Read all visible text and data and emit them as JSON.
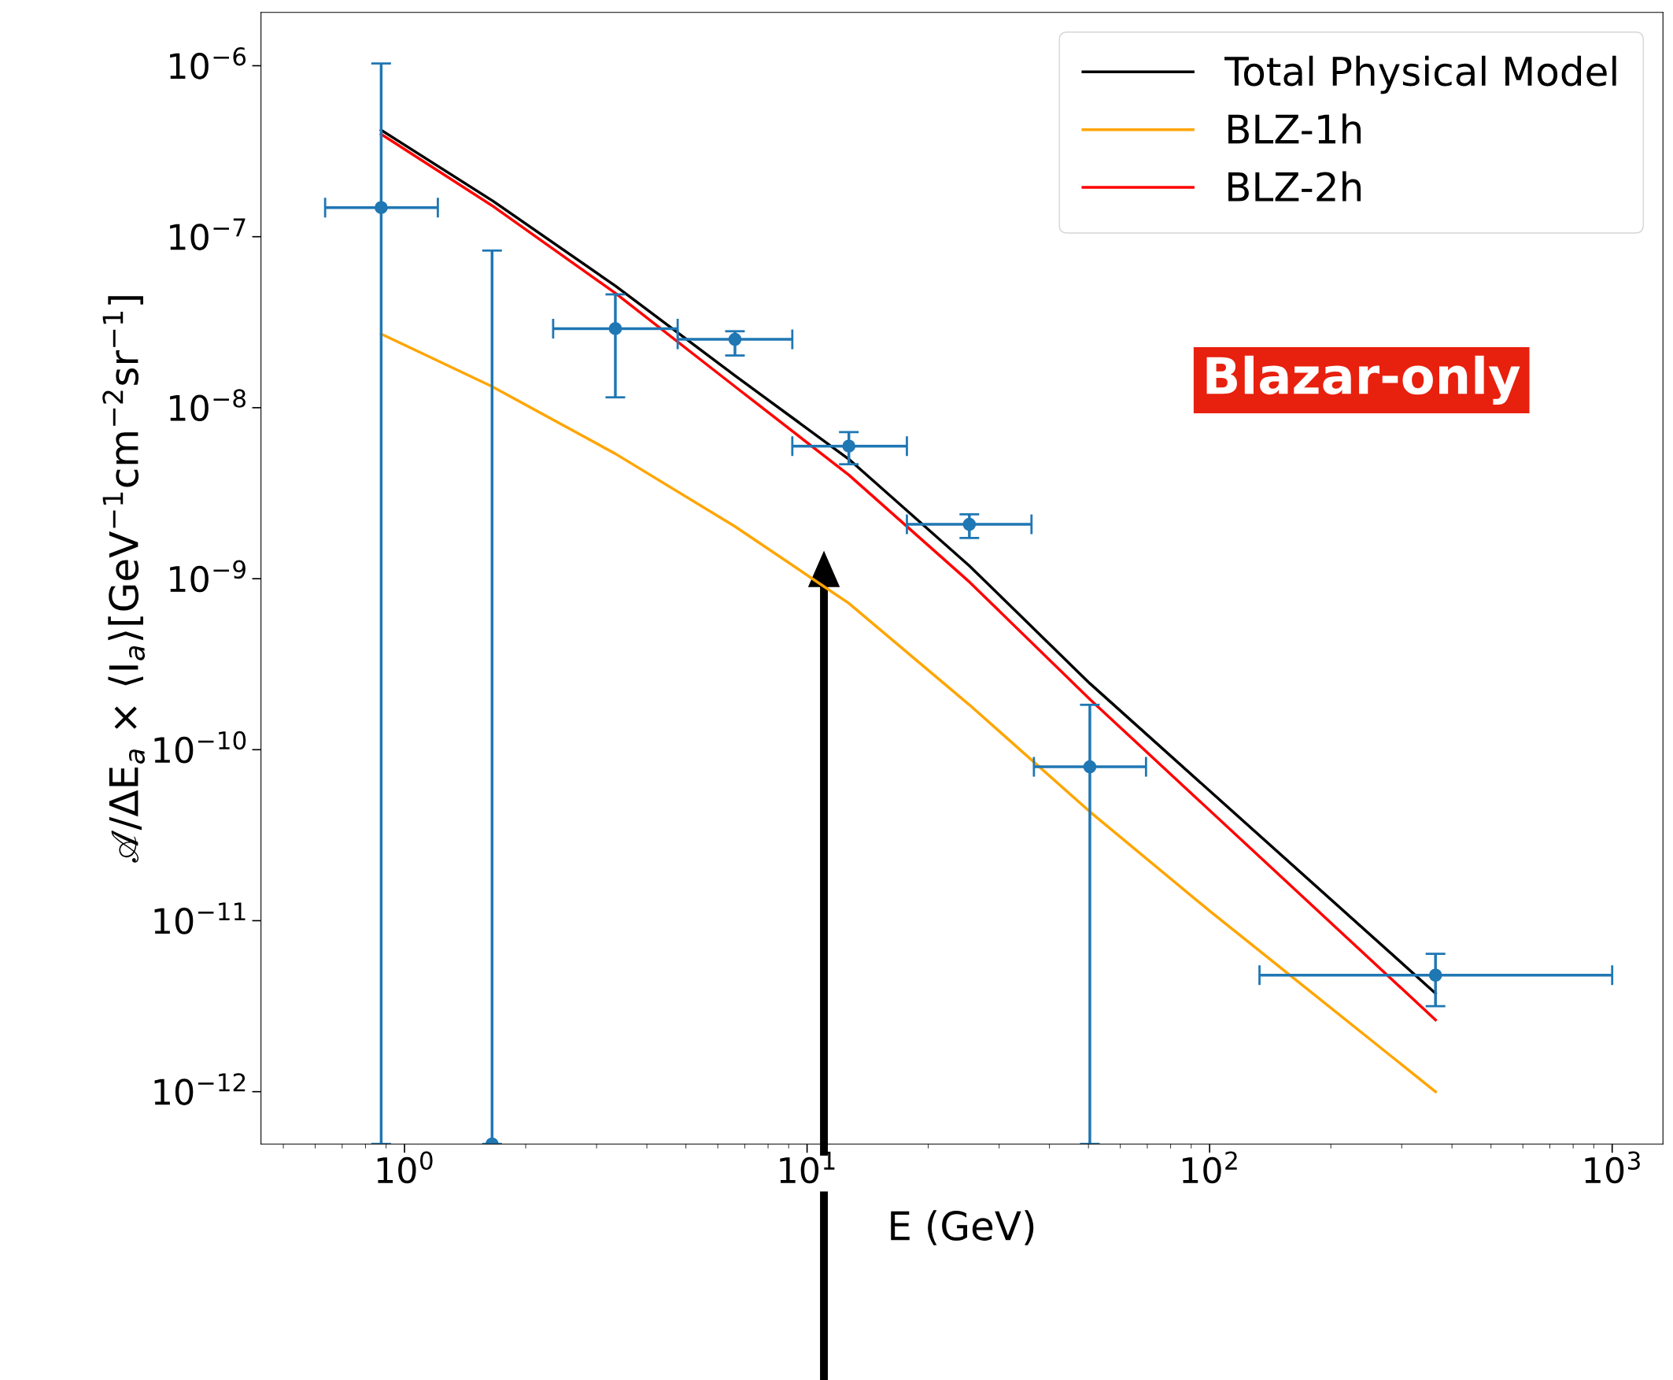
{
  "chart_data": {
    "type": "scatter",
    "xlabel": "E (GeV)",
    "ylabel": "𝒜/ΔE$_{a}$ × ⟨I$_{a}$⟩[GeV$^{−1}$cm$^{−2}$sr$^{−1}$]",
    "log": "xy",
    "xlim": [
      0.44,
      1337
    ],
    "ylim": [
      4.94e-13,
      2.05e-06
    ],
    "xticks": [
      {
        "value": 1,
        "label": "10$^{0}$"
      },
      {
        "value": 10,
        "label": "10$^{1}$"
      },
      {
        "value": 100,
        "label": "10$^{2}$"
      },
      {
        "value": 1000,
        "label": "10$^{3}$"
      }
    ],
    "yticks": [
      {
        "value": 1e-12,
        "label": "10$^{−12}$"
      },
      {
        "value": 1e-11,
        "label": "10$^{−11}$"
      },
      {
        "value": 1e-10,
        "label": "10$^{−10}$"
      },
      {
        "value": 1e-09,
        "label": "10$^{−9}$"
      },
      {
        "value": 1e-08,
        "label": "10$^{−8}$"
      },
      {
        "value": 1e-07,
        "label": "10$^{−7}$"
      },
      {
        "value": 1e-06,
        "label": "10$^{−6}$"
      }
    ],
    "legend": "top right",
    "grid": false,
    "series": [
      {
        "name": "Total Physical Model",
        "type": "line",
        "color": "#000000",
        "marker": "none",
        "x": [
          0.875,
          1.65,
          3.34,
          6.62,
          12.7,
          25.3,
          50.4,
          364
        ],
        "values": [
          4.2e-07,
          1.63e-07,
          5.16e-08,
          1.54e-08,
          5e-09,
          1.19e-09,
          2.44e-10,
          3.76e-12
        ]
      },
      {
        "name": "BLZ-1h",
        "type": "line",
        "color": "#ffa500",
        "marker": "none",
        "x": [
          0.875,
          1.65,
          3.34,
          6.62,
          12.7,
          25.3,
          50.4,
          100,
          364
        ],
        "values": [
          2.7e-08,
          1.33e-08,
          5.38e-09,
          2.02e-09,
          7.18e-10,
          1.83e-10,
          4.34e-11,
          1.14e-11,
          1e-12
        ]
      },
      {
        "name": "BLZ-2h",
        "type": "line",
        "color": "#ff0000",
        "marker": "none",
        "x": [
          0.875,
          1.65,
          3.34,
          6.62,
          12.7,
          25.3,
          50.4,
          364
        ],
        "values": [
          3.98e-07,
          1.52e-07,
          4.68e-08,
          1.33e-08,
          4.04e-09,
          9.58e-10,
          1.97e-10,
          2.63e-12
        ]
      },
      {
        "color": "#1f77b4",
        "marker": "circle",
        "x": [
          0.875,
          1.65,
          3.34,
          6.62,
          12.7,
          25.3,
          50.4,
          364
        ],
        "values": [
          1.48e-07,
          4.94e-13,
          2.9e-08,
          2.51e-08,
          5.96e-09,
          2.08e-09,
          7.94e-11,
          4.8e-12
        ],
        "errors": [
          [
            4.94e-13,
            1.03e-06
          ],
          [
            4.94e-13,
            8.3e-08
          ],
          [
            1.15e-08,
            4.6e-08
          ],
          [
            2.02e-08,
            2.8e-08
          ],
          [
            4.67e-09,
            7.2e-09
          ],
          [
            1.73e-09,
            2.38e-09
          ],
          [
            4.94e-13,
            1.83e-10
          ],
          [
            3.16e-12,
            6.4e-12
          ]
        ],
        "xerrors": [
          [
            0.635,
            1.21
          ],
          null,
          [
            2.34,
            4.77
          ],
          [
            4.77,
            9.19
          ],
          [
            9.19,
            17.7
          ],
          [
            17.7,
            36.1
          ],
          [
            36.6,
            69.5
          ],
          [
            133,
            1000
          ]
        ]
      }
    ],
    "annotations": [
      "Blazar-only"
    ]
  }
}
